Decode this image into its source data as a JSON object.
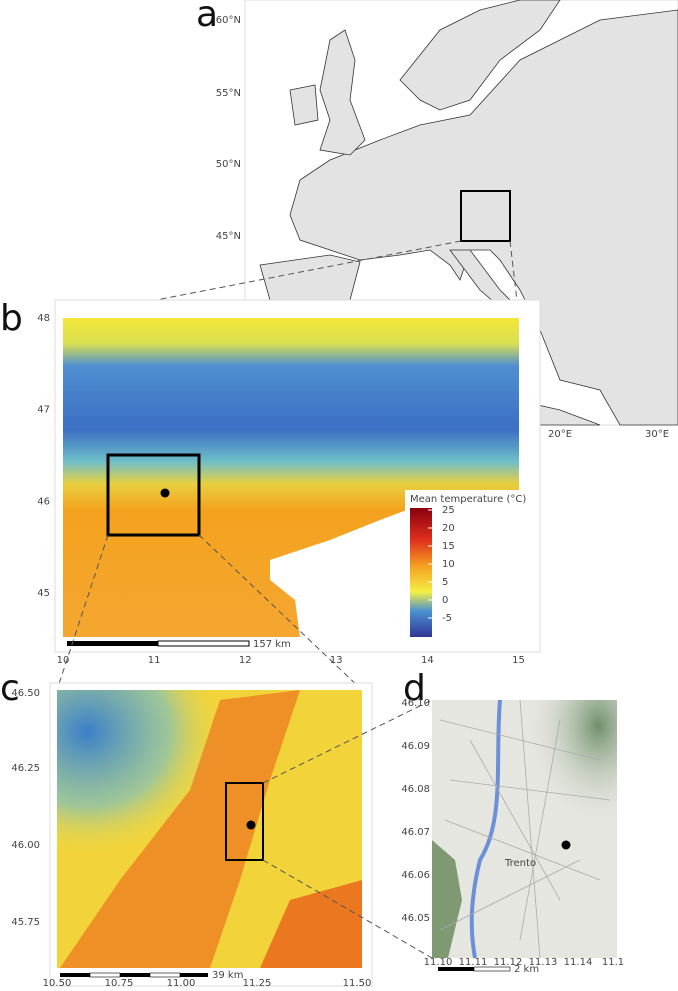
{
  "panels": {
    "a": {
      "label": "a",
      "lat_labels": [
        "60°N",
        "55°N",
        "50°N",
        "45°N"
      ],
      "lon_labels": [
        "20°E",
        "30°E"
      ]
    },
    "b": {
      "label": "b",
      "y_labels": [
        "48",
        "47",
        "46",
        "45"
      ],
      "x_labels": [
        "10",
        "11",
        "12",
        "13",
        "14",
        "15"
      ],
      "legend_title": "Mean temperature (°C)",
      "legend_ticks": [
        25,
        20,
        15,
        10,
        5,
        0,
        -5
      ],
      "scale_label": "157 km"
    },
    "c": {
      "label": "c",
      "y_labels": [
        "46.50",
        "46.25",
        "46.00",
        "45.75"
      ],
      "x_labels": [
        "10.50",
        "10.75",
        "11.00",
        "11.25",
        "11.50"
      ],
      "scale_label": "39 km"
    },
    "d": {
      "label": "d",
      "y_labels": [
        "46.10",
        "46.09",
        "46.08",
        "46.07",
        "46.06",
        "46.05"
      ],
      "x_labels": [
        "11.10",
        "11.11",
        "11.12",
        "11.13",
        "11.14",
        "11.1"
      ],
      "scale_label": "2 km",
      "place_label": "Trento"
    }
  }
}
